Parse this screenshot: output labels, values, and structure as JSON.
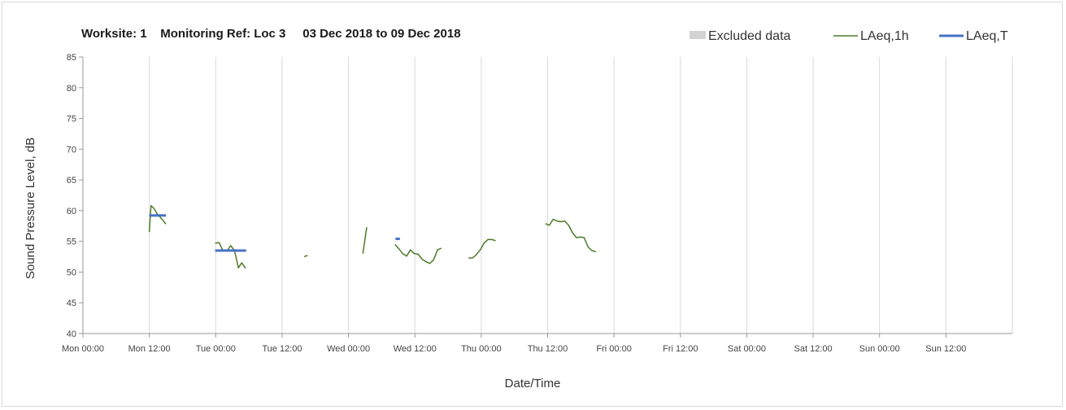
{
  "chart_data": {
    "type": "line",
    "title": "Worksite: 1    Monitoring Ref: Loc 3     03 Dec 2018 to 09 Dec 2018",
    "xlabel": "Date/Time",
    "ylabel": "Sound Pressure Level, dB",
    "ylim": [
      40,
      85
    ],
    "yticks": [
      40,
      45,
      50,
      55,
      60,
      65,
      70,
      75,
      80,
      85
    ],
    "xlim_hours": [
      0,
      168
    ],
    "x_unit": "hours from Mon 00:00",
    "xticks": [
      {
        "value": 0,
        "label": "Mon 00:00"
      },
      {
        "value": 12,
        "label": "Mon 12:00"
      },
      {
        "value": 24,
        "label": "Tue 00:00"
      },
      {
        "value": 36,
        "label": "Tue 12:00"
      },
      {
        "value": 48,
        "label": "Wed 00:00"
      },
      {
        "value": 60,
        "label": "Wed 12:00"
      },
      {
        "value": 72,
        "label": "Thu 00:00"
      },
      {
        "value": 84,
        "label": "Thu 12:00"
      },
      {
        "value": 96,
        "label": "Fri 00:00"
      },
      {
        "value": 108,
        "label": "Fri 12:00"
      },
      {
        "value": 120,
        "label": "Sat 00:00"
      },
      {
        "value": 132,
        "label": "Sat 12:00"
      },
      {
        "value": 144,
        "label": "Sun 00:00"
      },
      {
        "value": 156,
        "label": "Sun 12:00"
      }
    ],
    "grid": "vertical",
    "legend_position": "top-right",
    "legend": [
      {
        "label": "Excluded data",
        "kind": "box",
        "color": "#d3d3d3"
      },
      {
        "label": "LAeq,1h",
        "kind": "line",
        "color": "#4f7a28"
      },
      {
        "label": "LAeq,T",
        "kind": "line",
        "color": "#4472c4"
      }
    ],
    "series": [
      {
        "name": "LAeq,1h",
        "color": "#4f7a28",
        "segments": [
          [
            [
              0,
              56.5
            ],
            [
              0.3,
              60.8
            ],
            [
              0.8,
              60.4
            ],
            [
              1.4,
              59.5
            ],
            [
              2.2,
              58.7
            ],
            [
              3.0,
              57.8
            ]
          ],
          [
            [
              11.9,
              54.7
            ],
            [
              12.6,
              54.8
            ],
            [
              13.3,
              53.5
            ],
            [
              14.0,
              53.4
            ],
            [
              14.7,
              54.3
            ],
            [
              15.4,
              53.5
            ],
            [
              16.1,
              50.7
            ],
            [
              16.7,
              51.5
            ],
            [
              17.4,
              50.6
            ]
          ],
          [
            [
              28.0,
              52.5
            ],
            [
              28.6,
              52.7
            ]
          ],
          [
            [
              38.6,
              53.0
            ],
            [
              39.3,
              57.3
            ]
          ],
          [
            [
              44.4,
              54.5
            ],
            [
              45.1,
              53.8
            ],
            [
              45.8,
              53.0
            ],
            [
              46.5,
              52.6
            ],
            [
              47.2,
              53.6
            ],
            [
              47.9,
              53.0
            ],
            [
              48.6,
              52.9
            ],
            [
              49.3,
              52.1
            ],
            [
              50.0,
              51.7
            ],
            [
              50.7,
              51.4
            ],
            [
              51.4,
              52.0
            ],
            [
              52.1,
              53.6
            ],
            [
              52.8,
              53.9
            ]
          ],
          [
            [
              57.7,
              52.3
            ],
            [
              58.4,
              52.3
            ],
            [
              59.1,
              52.8
            ],
            [
              59.8,
              53.6
            ],
            [
              60.5,
              54.7
            ],
            [
              61.2,
              55.3
            ],
            [
              61.9,
              55.3
            ],
            [
              62.6,
              55.1
            ]
          ],
          [
            [
              71.6,
              57.9
            ],
            [
              72.3,
              57.6
            ],
            [
              73.0,
              58.6
            ],
            [
              73.7,
              58.3
            ],
            [
              74.4,
              58.2
            ],
            [
              75.1,
              58.3
            ],
            [
              75.8,
              57.6
            ],
            [
              76.5,
              56.4
            ],
            [
              77.2,
              55.6
            ],
            [
              77.9,
              55.7
            ],
            [
              78.6,
              55.6
            ],
            [
              79.3,
              54.1
            ],
            [
              80.0,
              53.5
            ],
            [
              80.7,
              53.3
            ]
          ]
        ]
      },
      {
        "name": "LAeq,T",
        "color": "#4472c4",
        "segments": [
          [
            [
              0,
              59.2
            ],
            [
              3.0,
              59.2
            ]
          ],
          [
            [
              11.9,
              53.5
            ],
            [
              17.5,
              53.5
            ]
          ],
          [
            [
              44.5,
              55.4
            ],
            [
              45.3,
              55.4
            ]
          ]
        ]
      }
    ]
  }
}
